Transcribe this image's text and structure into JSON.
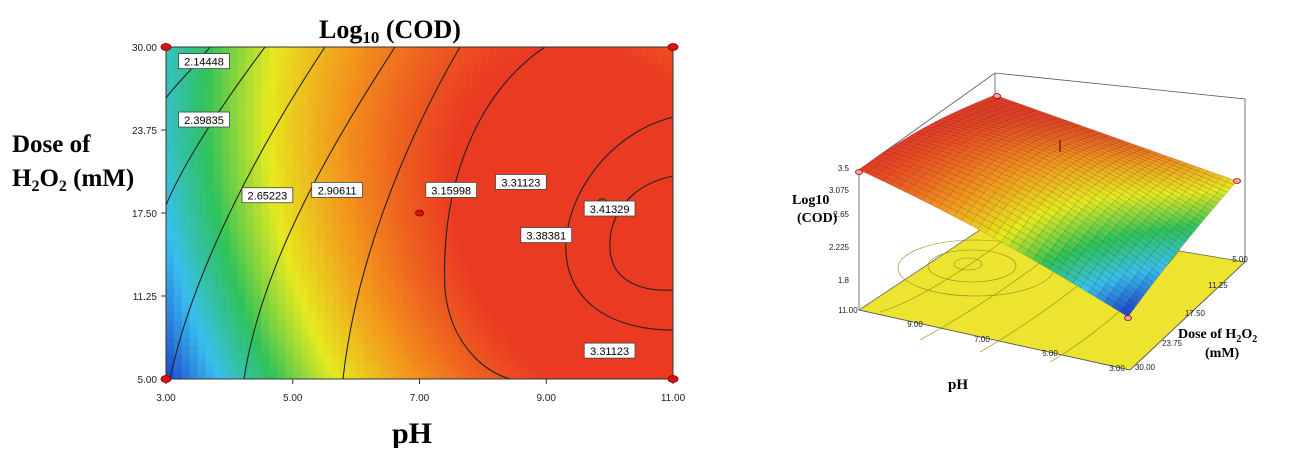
{
  "chart_data": [
    {
      "type": "contour",
      "title": "Log",
      "title_subscript": "10",
      "title_suffix": " (COD)",
      "xlabel": "pH",
      "ylabel_line1": "Dose of",
      "ylabel_line2_prefix": "H",
      "ylabel_line2_sub1": "2",
      "ylabel_line2_mid": "O",
      "ylabel_line2_sub2": "2",
      "ylabel_line2_suffix": " (mM)",
      "xlim": [
        3,
        11
      ],
      "ylim": [
        5,
        30
      ],
      "x_ticks": [
        "3.00",
        "5.00",
        "7.00",
        "9.00",
        "11.00"
      ],
      "x_tick_values": [
        3,
        5,
        7,
        9,
        11
      ],
      "y_ticks": [
        "5.00",
        "11.25",
        "17.50",
        "23.75",
        "30.00"
      ],
      "y_tick_values": [
        5,
        11.25,
        17.5,
        23.75,
        30
      ],
      "contour_labels": [
        {
          "text": "2.14448",
          "x": 3.6,
          "y": 28.9,
          "level": 2.14448
        },
        {
          "text": "2.39835",
          "x": 3.6,
          "y": 24.5,
          "level": 2.39835
        },
        {
          "text": "2.65223",
          "x": 4.6,
          "y": 18.8,
          "level": 2.65223
        },
        {
          "text": "2.90611",
          "x": 5.7,
          "y": 19.2,
          "level": 2.90611
        },
        {
          "text": "3.15998",
          "x": 7.5,
          "y": 19.2,
          "level": 3.15998
        },
        {
          "text": "3.31123",
          "x": 8.6,
          "y": 19.8,
          "level": 3.31123
        },
        {
          "text": "3.38381",
          "x": 9.0,
          "y": 15.8,
          "level": 3.38381
        },
        {
          "text": "3.41329",
          "x": 10.0,
          "y": 17.8,
          "level": 3.41329
        },
        {
          "text": "3.31123",
          "x": 10.0,
          "y": 7.1,
          "level": 3.31123
        }
      ],
      "center_point": {
        "x": 7,
        "y": 17.5
      },
      "design_points": [
        {
          "x": 3,
          "y": 30
        },
        {
          "x": 11,
          "y": 30
        },
        {
          "x": 3,
          "y": 5
        },
        {
          "x": 11,
          "y": 5
        }
      ],
      "colorscale": [
        "#1f4fd0",
        "#38c0ee",
        "#2fc25a",
        "#e6ea1f",
        "#f3931c",
        "#ea3a22"
      ]
    },
    {
      "type": "surface3d",
      "zlabel_line1": "Log10",
      "zlabel_line2": "(COD)",
      "xlabel": "pH",
      "ylabel_prefix": "Dose of H",
      "ylabel_sub1": "2",
      "ylabel_mid": "O",
      "ylabel_sub2": "2",
      "ylabel_line2": "(mM)",
      "x_ticks": [
        "11.00",
        "9.00",
        "7.00",
        "5.00",
        "3.00"
      ],
      "y_ticks": [
        "30.00",
        "23.75",
        "17.50",
        "11.25",
        "5.00"
      ],
      "z_ticks": [
        "1.8",
        "2.225",
        "2.65",
        "3.075",
        "3.5"
      ],
      "zlim": [
        1.8,
        3.5
      ],
      "floor_color": "#eee636"
    }
  ]
}
